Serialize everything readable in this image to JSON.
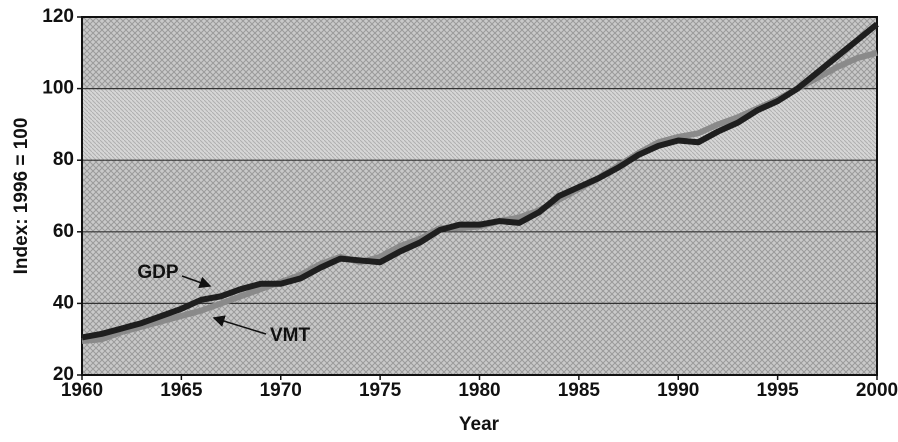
{
  "chart_data": {
    "type": "line",
    "y_label": "Index: 1996 = 100",
    "x_label": "Year",
    "x": [
      1960,
      1961,
      1962,
      1963,
      1964,
      1965,
      1966,
      1967,
      1968,
      1969,
      1970,
      1971,
      1972,
      1973,
      1974,
      1975,
      1976,
      1977,
      1978,
      1979,
      1980,
      1981,
      1982,
      1983,
      1984,
      1985,
      1986,
      1987,
      1988,
      1989,
      1990,
      1991,
      1992,
      1993,
      1994,
      1995,
      1996,
      1997,
      1998,
      1999,
      2000
    ],
    "series": [
      {
        "name": "GDP",
        "color": "#1e1e1e",
        "values": [
          30.5,
          31.5,
          33,
          34.5,
          36.5,
          38.5,
          41,
          42,
          44,
          45.5,
          45.5,
          47,
          50,
          52.5,
          52,
          51.5,
          54.5,
          57,
          60.5,
          62,
          62,
          63,
          62.5,
          65.5,
          70,
          72.5,
          75,
          78,
          81.5,
          84,
          85.5,
          85,
          88,
          90.5,
          94,
          96.5,
          100,
          104.5,
          109,
          113.5,
          118
        ]
      },
      {
        "name": "VMT",
        "color": "#8a8a8a",
        "values": [
          29.5,
          30,
          32,
          33.5,
          35,
          36.5,
          38,
          40,
          42,
          44,
          46,
          48,
          51,
          53,
          51.5,
          53,
          56,
          58,
          61,
          61,
          61.5,
          63,
          64,
          66,
          69,
          72,
          75,
          78.5,
          82,
          85,
          86.5,
          87.5,
          90,
          92,
          94.5,
          97,
          100,
          103,
          106,
          108.5,
          110
        ]
      }
    ],
    "xlim": [
      1960,
      2000
    ],
    "xticks": [
      1960,
      1965,
      1970,
      1975,
      1980,
      1985,
      1990,
      1995,
      2000
    ],
    "ylim": [
      20,
      120
    ],
    "yticks": [
      20,
      40,
      60,
      80,
      100,
      120
    ],
    "grid": true
  }
}
